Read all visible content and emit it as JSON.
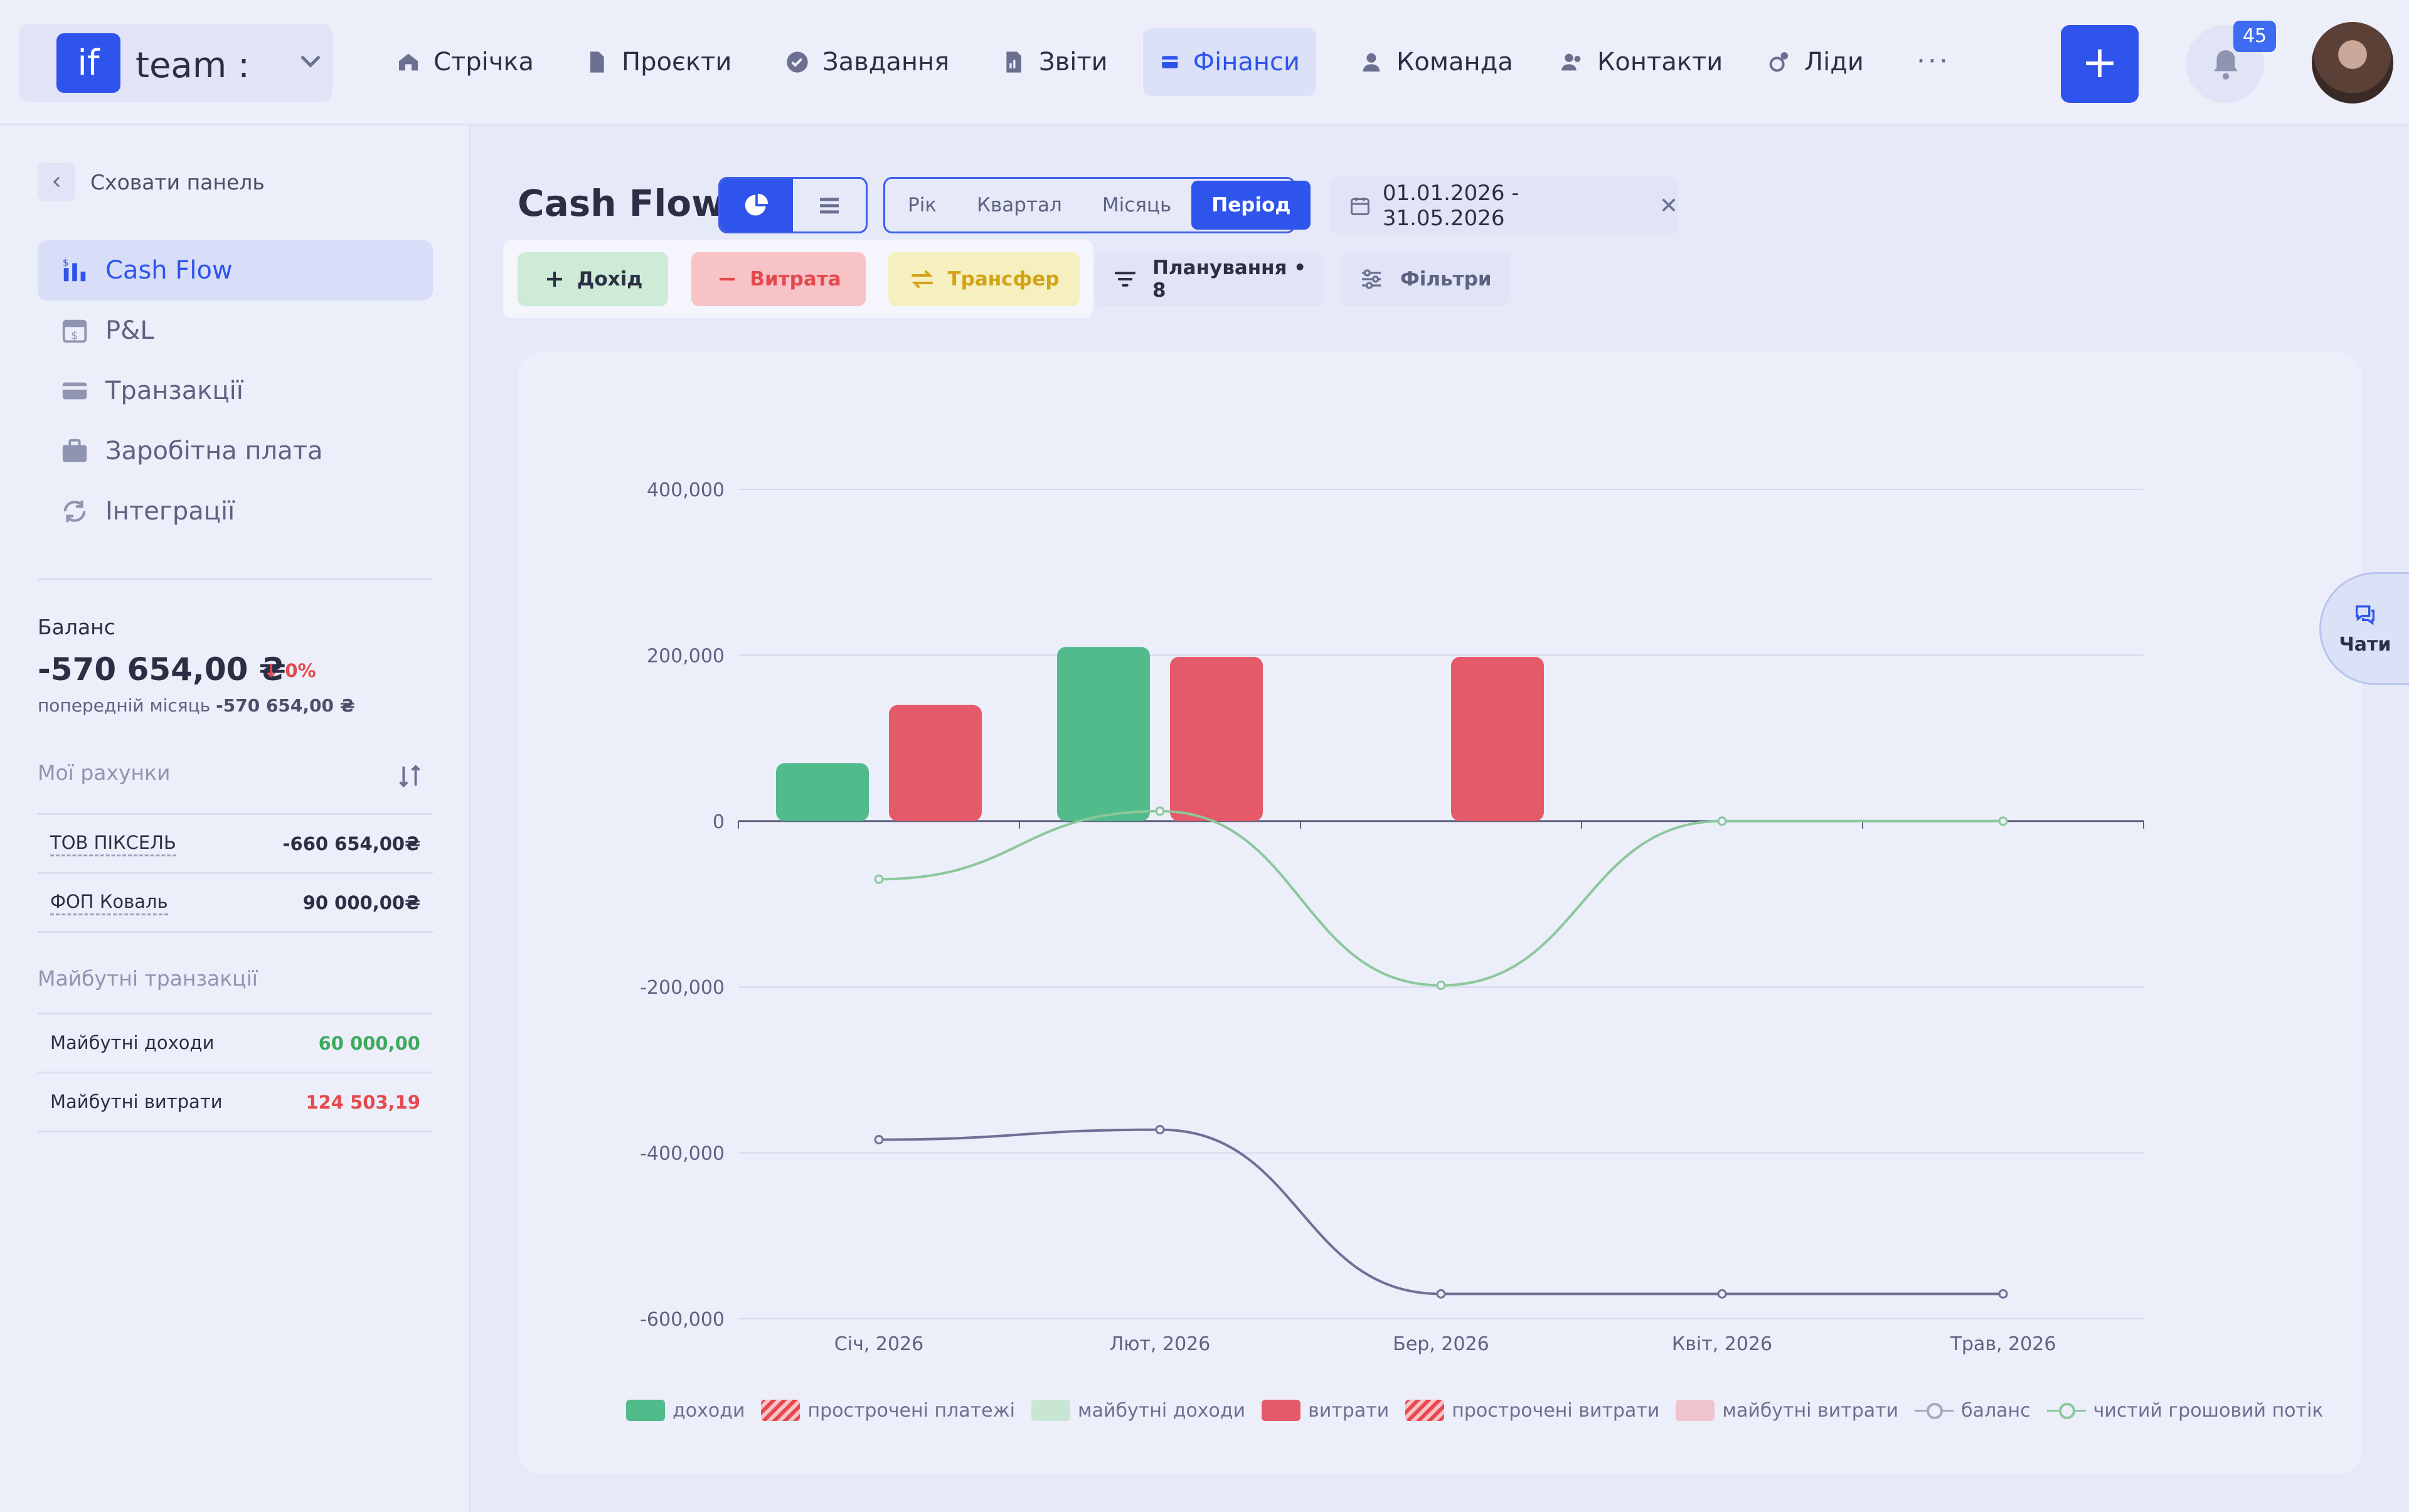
{
  "brand": {
    "logo": "if",
    "name": "team :"
  },
  "nav": {
    "items": [
      {
        "label": "Стрічка",
        "icon": "home-icon"
      },
      {
        "label": "Проєкти",
        "icon": "file-icon"
      },
      {
        "label": "Завдання",
        "icon": "check-circle-icon"
      },
      {
        "label": "Звіти",
        "icon": "report-icon"
      },
      {
        "label": "Фінанси",
        "icon": "wallet-icon",
        "active": true
      },
      {
        "label": "Команда",
        "icon": "user-icon"
      },
      {
        "label": "Контакти",
        "icon": "users-icon"
      },
      {
        "label": "Ліди",
        "icon": "lead-icon"
      }
    ],
    "more": "···",
    "add": "+",
    "notifications_count": "45"
  },
  "sidebar": {
    "collapse_label": "Сховати панель",
    "items": [
      {
        "label": "Cash Flow",
        "icon": "cashflow-icon",
        "active": true
      },
      {
        "label": "P&L",
        "icon": "calendar-dollar-icon"
      },
      {
        "label": "Транзакції",
        "icon": "card-icon"
      },
      {
        "label": "Заробітна плата",
        "icon": "briefcase-icon"
      },
      {
        "label": "Інтеграції",
        "icon": "sync-icon"
      }
    ],
    "balance": {
      "label": "Баланс",
      "value": "-570 654,00 ₴",
      "change": "0%",
      "prev_label": "попередній місяць",
      "prev_value": "-570 654,00 ₴"
    },
    "accounts": {
      "title": "Мої рахунки",
      "rows": [
        {
          "name": "ТОВ ПІКСЕЛЬ",
          "value": "-660 654,00₴"
        },
        {
          "name": "ФОП Коваль",
          "value": "90 000,00₴"
        }
      ]
    },
    "future": {
      "title": "Майбутні транзакції",
      "rows": [
        {
          "name": "Майбутні доходи",
          "value": "60 000,00"
        },
        {
          "name": "Майбутні витрати",
          "value": "124 503,19"
        }
      ]
    }
  },
  "header": {
    "title": "Cash Flow",
    "period_tabs": [
      "Рік",
      "Квартал",
      "Місяць",
      "Період"
    ],
    "active_period": "Період",
    "date_range": "01.01.2026 - 31.05.2026"
  },
  "actions": {
    "income": "Дохід",
    "expense": "Витрата",
    "transfer": "Трансфер",
    "planning": "Планування • 8",
    "filters": "Фільтри"
  },
  "chat_label": "Чати",
  "colors": {
    "accent": "#2f54eb",
    "income": "#52bb8c",
    "expense": "#e55a69",
    "balance_line": "#6e7194",
    "netflow_line": "#8cc79c"
  },
  "chart_data": {
    "type": "bar",
    "categories": [
      "Січ, 2026",
      "Лют, 2026",
      "Бер, 2026",
      "Квіт, 2026",
      "Трав, 2026"
    ],
    "ylim": [
      -600000,
      400000
    ],
    "yticks": [
      400000,
      200000,
      0,
      -200000,
      -400000,
      -600000
    ],
    "ytick_labels": [
      "400,000",
      "200,000",
      "0",
      "-200,000",
      "-400,000",
      "-600,000"
    ],
    "series": [
      {
        "name": "доходи",
        "kind": "bar",
        "values": [
          70000,
          210000,
          0,
          0,
          0
        ]
      },
      {
        "name": "прострочені платежі",
        "kind": "bar",
        "values": [
          0,
          0,
          0,
          0,
          0
        ]
      },
      {
        "name": "майбутні доходи",
        "kind": "bar",
        "values": [
          0,
          0,
          0,
          0,
          0
        ]
      },
      {
        "name": "витрати",
        "kind": "bar",
        "values": [
          140000,
          198000,
          198000,
          0,
          0
        ]
      },
      {
        "name": "прострочені витрати",
        "kind": "bar",
        "values": [
          0,
          0,
          0,
          0,
          0
        ]
      },
      {
        "name": "майбутні витрати",
        "kind": "bar",
        "values": [
          0,
          0,
          0,
          0,
          0
        ]
      },
      {
        "name": "баланс",
        "kind": "line",
        "values": [
          -384000,
          -372000,
          -570000,
          -570000,
          -570000
        ]
      },
      {
        "name": "чистий грошовий потік",
        "kind": "line",
        "values": [
          -70000,
          12000,
          -198000,
          0,
          0
        ]
      }
    ],
    "legend_position": "bottom",
    "grid": true
  }
}
